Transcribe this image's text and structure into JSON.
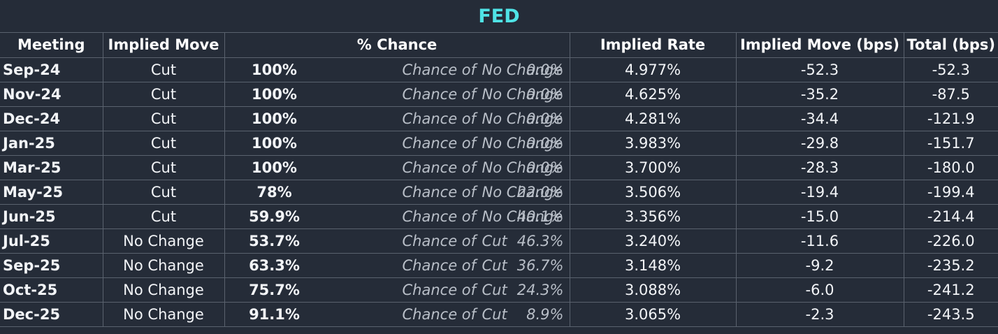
{
  "title": "FED",
  "headers": {
    "meeting": "Meeting",
    "implied_move": "Implied Move",
    "chance": "% Chance",
    "implied_rate": "Implied Rate",
    "implied_move_bps": "Implied Move (bps)",
    "total_bps": "Total (bps)"
  },
  "colors": {
    "background": "#252c38",
    "title": "#4fe3e6",
    "text": "#f2f4f7",
    "muted": "#b9bfc8",
    "gridline": "#5a626e"
  },
  "rows": [
    {
      "meeting": "Sep-24",
      "move": "Cut",
      "pct": "100%",
      "other_pct": "0.0%",
      "chance_of": "Chance of",
      "outcome": "No Change",
      "rate": "4.977%",
      "bps": "-52.3",
      "total": "-52.3"
    },
    {
      "meeting": "Nov-24",
      "move": "Cut",
      "pct": "100%",
      "other_pct": "0.0%",
      "chance_of": "Chance of",
      "outcome": "No Change",
      "rate": "4.625%",
      "bps": "-35.2",
      "total": "-87.5"
    },
    {
      "meeting": "Dec-24",
      "move": "Cut",
      "pct": "100%",
      "other_pct": "0.0%",
      "chance_of": "Chance of",
      "outcome": "No Change",
      "rate": "4.281%",
      "bps": "-34.4",
      "total": "-121.9"
    },
    {
      "meeting": "Jan-25",
      "move": "Cut",
      "pct": "100%",
      "other_pct": "0.0%",
      "chance_of": "Chance of",
      "outcome": "No Change",
      "rate": "3.983%",
      "bps": "-29.8",
      "total": "-151.7"
    },
    {
      "meeting": "Mar-25",
      "move": "Cut",
      "pct": "100%",
      "other_pct": "0.0%",
      "chance_of": "Chance of",
      "outcome": "No Change",
      "rate": "3.700%",
      "bps": "-28.3",
      "total": "-180.0"
    },
    {
      "meeting": "May-25",
      "move": "Cut",
      "pct": "78%",
      "other_pct": "22.0%",
      "chance_of": "Chance of",
      "outcome": "No Change",
      "rate": "3.506%",
      "bps": "-19.4",
      "total": "-199.4"
    },
    {
      "meeting": "Jun-25",
      "move": "Cut",
      "pct": "59.9%",
      "other_pct": "40.1%",
      "chance_of": "Chance of",
      "outcome": "No Change",
      "rate": "3.356%",
      "bps": "-15.0",
      "total": "-214.4"
    },
    {
      "meeting": "Jul-25",
      "move": "No Change",
      "pct": "53.7%",
      "other_pct": "46.3%",
      "chance_of": "Chance of",
      "outcome": "Cut",
      "rate": "3.240%",
      "bps": "-11.6",
      "total": "-226.0"
    },
    {
      "meeting": "Sep-25",
      "move": "No Change",
      "pct": "63.3%",
      "other_pct": "36.7%",
      "chance_of": "Chance of",
      "outcome": "Cut",
      "rate": "3.148%",
      "bps": "-9.2",
      "total": "-235.2"
    },
    {
      "meeting": "Oct-25",
      "move": "No Change",
      "pct": "75.7%",
      "other_pct": "24.3%",
      "chance_of": "Chance of",
      "outcome": "Cut",
      "rate": "3.088%",
      "bps": "-6.0",
      "total": "-241.2"
    },
    {
      "meeting": "Dec-25",
      "move": "No Change",
      "pct": "91.1%",
      "other_pct": "8.9%",
      "chance_of": "Chance of",
      "outcome": "Cut",
      "rate": "3.065%",
      "bps": "-2.3",
      "total": "-243.5"
    }
  ]
}
